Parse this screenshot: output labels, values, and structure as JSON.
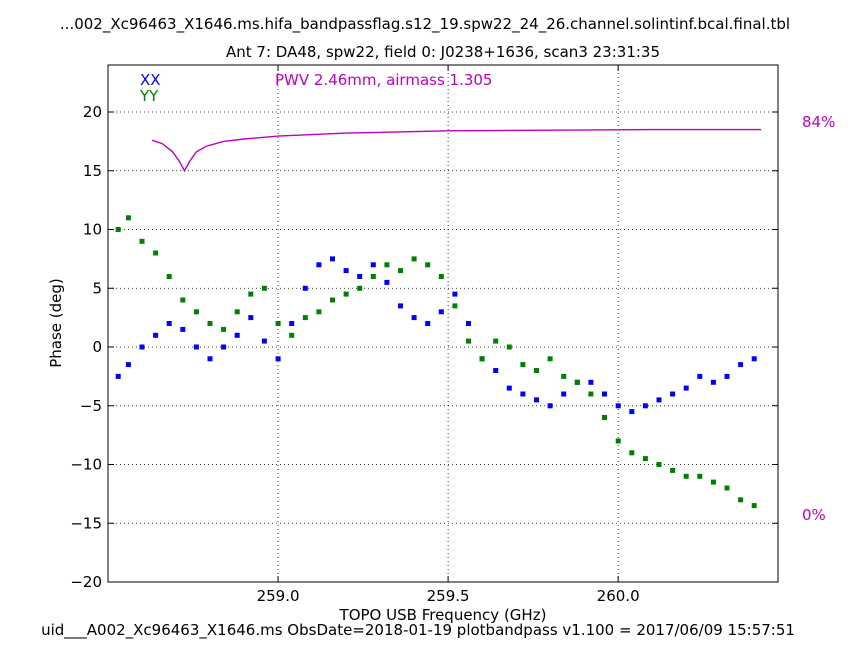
{
  "chart_data": {
    "type": "scatter",
    "title": "...002_Xc96463_X1646.ms.hifa_bandpassflag.s12_19.spw22_24_26.channel.solintinf.bcal.final.tbl",
    "subtitle": "Ant 7: DA48,  spw22,  field 0: J0238+1636,  scan3  23:31:35",
    "xlabel": "TOPO USB Frequency (GHz)",
    "ylabel": "Phase (deg)",
    "footer": "uid___A002_Xc96463_X1646.ms  ObsDate=2018-01-19   plotbandpass v1.100 = 2017/06/09 15:57:51",
    "xlim": [
      258.5,
      260.47
    ],
    "ylim": [
      -20,
      24
    ],
    "xticks": [
      "259.0",
      "259.5",
      "260.0"
    ],
    "xtick_values": [
      259.0,
      259.5,
      260.0
    ],
    "yticks": [
      "−20",
      "−15",
      "−10",
      "−5",
      "0",
      "5",
      "10",
      "15",
      "20"
    ],
    "ytick_values": [
      -20,
      -15,
      -10,
      -5,
      0,
      5,
      10,
      15,
      20
    ],
    "grid": true,
    "legend": [
      {
        "label": "XX",
        "color": "#0000ff"
      },
      {
        "label": "YY",
        "color": "#008000"
      }
    ],
    "annotation": {
      "text": "PWV 2.46mm, airmass 1.305",
      "color": "#c000c0"
    },
    "transmission": {
      "top_label": "84%",
      "bottom_label": "0%",
      "color": "#c000c0",
      "x": [
        258.63,
        258.66,
        258.69,
        258.71,
        258.725,
        258.74,
        258.76,
        258.79,
        258.84,
        258.9,
        259.0,
        259.2,
        259.5,
        259.8,
        260.1,
        260.42
      ],
      "phase_equiv": [
        17.6,
        17.3,
        16.6,
        15.8,
        15.0,
        15.8,
        16.6,
        17.1,
        17.5,
        17.7,
        17.95,
        18.2,
        18.4,
        18.45,
        18.5,
        18.5
      ]
    },
    "series": [
      {
        "name": "XX",
        "color": "#0000ff",
        "x": [
          258.53,
          258.56,
          258.6,
          258.64,
          258.68,
          258.72,
          258.76,
          258.8,
          258.84,
          258.88,
          258.92,
          258.96,
          259.0,
          259.04,
          259.08,
          259.12,
          259.16,
          259.2,
          259.24,
          259.28,
          259.32,
          259.36,
          259.4,
          259.44,
          259.48,
          259.52,
          259.56,
          259.6,
          259.64,
          259.68,
          259.72,
          259.76,
          259.8,
          259.84,
          259.88,
          259.92,
          259.96,
          260.0,
          260.04,
          260.08,
          260.12,
          260.16,
          260.2,
          260.24,
          260.28,
          260.32,
          260.36,
          260.4
        ],
        "y": [
          -2.5,
          -1.5,
          0.0,
          1.0,
          2.0,
          1.5,
          0.0,
          -1.0,
          0.0,
          1.0,
          2.5,
          0.5,
          -1.0,
          2.0,
          5.0,
          7.0,
          7.5,
          6.5,
          6.0,
          7.0,
          5.5,
          3.5,
          2.5,
          2.0,
          3.0,
          4.5,
          2.0,
          -1.0,
          -2.0,
          -3.5,
          -4.0,
          -4.5,
          -5.0,
          -4.0,
          -3.0,
          -3.0,
          -4.0,
          -5.0,
          -5.5,
          -5.0,
          -4.5,
          -4.0,
          -3.5,
          -2.5,
          -3.0,
          -2.5,
          -1.5,
          -1.0
        ]
      },
      {
        "name": "YY",
        "color": "#008000",
        "x": [
          258.53,
          258.56,
          258.6,
          258.64,
          258.68,
          258.72,
          258.76,
          258.8,
          258.84,
          258.88,
          258.92,
          258.96,
          259.0,
          259.04,
          259.08,
          259.12,
          259.16,
          259.2,
          259.24,
          259.28,
          259.32,
          259.36,
          259.4,
          259.44,
          259.48,
          259.52,
          259.56,
          259.6,
          259.64,
          259.68,
          259.72,
          259.76,
          259.8,
          259.84,
          259.88,
          259.92,
          259.96,
          260.0,
          260.04,
          260.08,
          260.12,
          260.16,
          260.2,
          260.24,
          260.28,
          260.32,
          260.36,
          260.4
        ],
        "y": [
          10.0,
          11.0,
          9.0,
          8.0,
          6.0,
          4.0,
          3.0,
          2.0,
          1.5,
          3.0,
          4.5,
          5.0,
          2.0,
          1.0,
          2.5,
          3.0,
          4.0,
          4.5,
          5.0,
          6.0,
          7.0,
          6.5,
          7.5,
          7.0,
          6.0,
          3.5,
          0.5,
          -1.0,
          0.5,
          0.0,
          -1.5,
          -2.0,
          -1.0,
          -2.5,
          -3.0,
          -4.0,
          -6.0,
          -8.0,
          -9.0,
          -9.5,
          -10.0,
          -10.5,
          -11.0,
          -11.0,
          -11.5,
          -12.0,
          -13.0,
          -13.5
        ]
      }
    ]
  }
}
